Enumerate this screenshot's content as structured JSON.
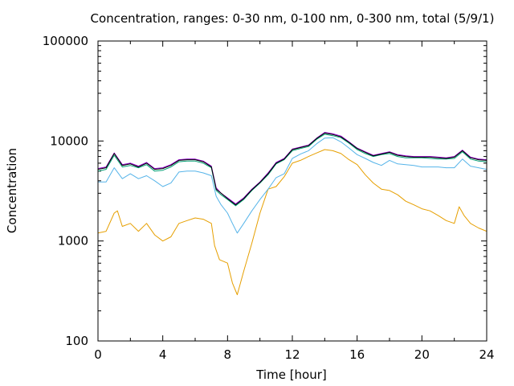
{
  "chart_data": {
    "type": "line",
    "title": "Concentration, ranges: 0-30 nm, 0-100 nm, 0-300 nm, total (5/9/1)",
    "xlabel": "Time [hour]",
    "ylabel": "Concentration",
    "xlim": [
      0,
      24
    ],
    "ylim": [
      100,
      100000
    ],
    "yscale": "log",
    "grid": false,
    "legend": "none",
    "x_ticks": [
      "0",
      "4",
      "8",
      "12",
      "16",
      "20",
      "24"
    ],
    "y_ticks": [
      "100",
      "1000",
      "10000",
      "100000"
    ],
    "series": [
      {
        "color": "#e69f00",
        "x": [
          0,
          0.5,
          1,
          1.2,
          1.5,
          2,
          2.5,
          3,
          3.5,
          4,
          4.5,
          5,
          5.5,
          6,
          6.5,
          7,
          7.2,
          7.5,
          8,
          8.3,
          8.6,
          9,
          9.5,
          10,
          10.5,
          11,
          11.5,
          12,
          12.5,
          13,
          13.5,
          14,
          14.5,
          15,
          15.5,
          16,
          16.5,
          17,
          17.5,
          18,
          18.5,
          19,
          19.5,
          20,
          20.5,
          21,
          21.5,
          22,
          22.3,
          22.6,
          23,
          23.5,
          24
        ],
        "y": [
          1200,
          1250,
          1900,
          2000,
          1400,
          1500,
          1250,
          1500,
          1150,
          1000,
          1100,
          1500,
          1600,
          1700,
          1650,
          1500,
          900,
          650,
          600,
          380,
          290,
          500,
          950,
          1900,
          3300,
          3500,
          4400,
          6000,
          6400,
          7000,
          7600,
          8200,
          8000,
          7500,
          6500,
          5800,
          4600,
          3800,
          3300,
          3200,
          2900,
          2500,
          2300,
          2100,
          2000,
          1800,
          1600,
          1500,
          2200,
          1800,
          1500,
          1350,
          1250
        ]
      },
      {
        "color": "#56b4e9",
        "x": [
          0,
          0.5,
          1,
          1.5,
          2,
          2.5,
          3,
          3.5,
          4,
          4.5,
          5,
          5.5,
          6,
          6.5,
          7,
          7.3,
          7.6,
          8,
          8.3,
          8.6,
          9,
          9.5,
          10,
          10.5,
          11,
          11.5,
          12,
          12.5,
          13,
          13.5,
          14,
          14.5,
          15,
          15.5,
          16,
          16.5,
          17,
          17.5,
          18,
          18.5,
          19,
          19.5,
          20,
          20.5,
          21,
          21.5,
          22,
          22.5,
          23,
          23.5,
          24
        ],
        "y": [
          3900,
          3900,
          5400,
          4200,
          4700,
          4200,
          4500,
          4000,
          3500,
          3800,
          4900,
          5000,
          5000,
          4800,
          4500,
          2800,
          2300,
          1900,
          1500,
          1200,
          1500,
          2000,
          2600,
          3300,
          4300,
          4700,
          6700,
          7400,
          8000,
          9400,
          10700,
          10800,
          9800,
          8500,
          7300,
          6700,
          6100,
          5700,
          6400,
          5900,
          5800,
          5700,
          5500,
          5500,
          5500,
          5400,
          5400,
          6600,
          5600,
          5400,
          5200
        ]
      },
      {
        "color": "#009e73",
        "x": [
          0,
          0.5,
          1,
          1.5,
          2,
          2.5,
          3,
          3.5,
          4,
          4.5,
          5,
          5.5,
          6,
          6.5,
          7,
          7.3,
          7.6,
          8,
          8.5,
          9,
          9.5,
          10,
          10.5,
          11,
          11.5,
          12,
          12.5,
          13,
          13.5,
          14,
          14.5,
          15,
          15.5,
          16,
          16.5,
          17,
          17.5,
          18,
          18.5,
          19,
          19.5,
          20,
          20.5,
          21,
          21.5,
          22,
          22.5,
          23,
          23.5,
          24
        ],
        "y": [
          5000,
          5200,
          7200,
          5500,
          5700,
          5400,
          5800,
          5000,
          5100,
          5500,
          6200,
          6300,
          6300,
          6000,
          5400,
          3200,
          2900,
          2600,
          2250,
          2600,
          3200,
          3800,
          4600,
          5900,
          6500,
          8000,
          8400,
          8800,
          10400,
          11700,
          11300,
          10800,
          9500,
          8200,
          7500,
          7000,
          7300,
          7500,
          7000,
          6800,
          6800,
          6800,
          6700,
          6600,
          6600,
          6700,
          7800,
          6600,
          6300,
          6200
        ]
      },
      {
        "color": "#9400d3",
        "x": [
          0,
          0.5,
          1,
          1.5,
          2,
          2.5,
          3,
          3.5,
          4,
          4.5,
          5,
          5.5,
          6,
          6.5,
          7,
          7.3,
          7.6,
          8,
          8.5,
          9,
          9.5,
          10,
          10.5,
          11,
          11.5,
          12,
          12.5,
          13,
          13.5,
          14,
          14.5,
          15,
          15.5,
          16,
          16.5,
          17,
          17.5,
          18,
          18.5,
          19,
          19.5,
          20,
          20.5,
          21,
          21.5,
          22,
          22.5,
          23,
          23.5,
          24
        ],
        "y": [
          5300,
          5500,
          7600,
          5800,
          6000,
          5600,
          6100,
          5300,
          5400,
          5800,
          6500,
          6600,
          6600,
          6300,
          5600,
          3400,
          3000,
          2700,
          2350,
          2700,
          3300,
          3900,
          4800,
          6100,
          6700,
          8300,
          8700,
          9100,
          10700,
          12200,
          11800,
          11200,
          9800,
          8500,
          7800,
          7200,
          7500,
          7800,
          7300,
          7100,
          7000,
          7000,
          7000,
          6900,
          6800,
          7000,
          8100,
          6900,
          6600,
          6500
        ]
      },
      {
        "color": "#000000",
        "x": [
          0,
          0.5,
          1,
          1.5,
          2,
          2.5,
          3,
          3.5,
          4,
          4.5,
          5,
          5.5,
          6,
          6.5,
          7,
          7.3,
          7.6,
          8,
          8.5,
          9,
          9.5,
          10,
          10.5,
          11,
          11.5,
          12,
          12.5,
          13,
          13.5,
          14,
          14.5,
          15,
          15.5,
          16,
          16.5,
          17,
          17.5,
          18,
          18.5,
          19,
          19.5,
          20,
          20.5,
          21,
          21.5,
          22,
          22.5,
          23,
          23.5,
          24
        ],
        "y": [
          5200,
          5400,
          7500,
          5700,
          5900,
          5500,
          6000,
          5200,
          5300,
          5700,
          6400,
          6500,
          6500,
          6200,
          5500,
          3300,
          3000,
          2650,
          2300,
          2650,
          3250,
          3850,
          4700,
          6000,
          6600,
          8200,
          8600,
          9000,
          10600,
          12000,
          11600,
          11000,
          9700,
          8400,
          7700,
          7100,
          7400,
          7700,
          7200,
          7000,
          6900,
          6900,
          6900,
          6800,
          6700,
          6900,
          8000,
          6800,
          6500,
          6400
        ]
      }
    ]
  }
}
